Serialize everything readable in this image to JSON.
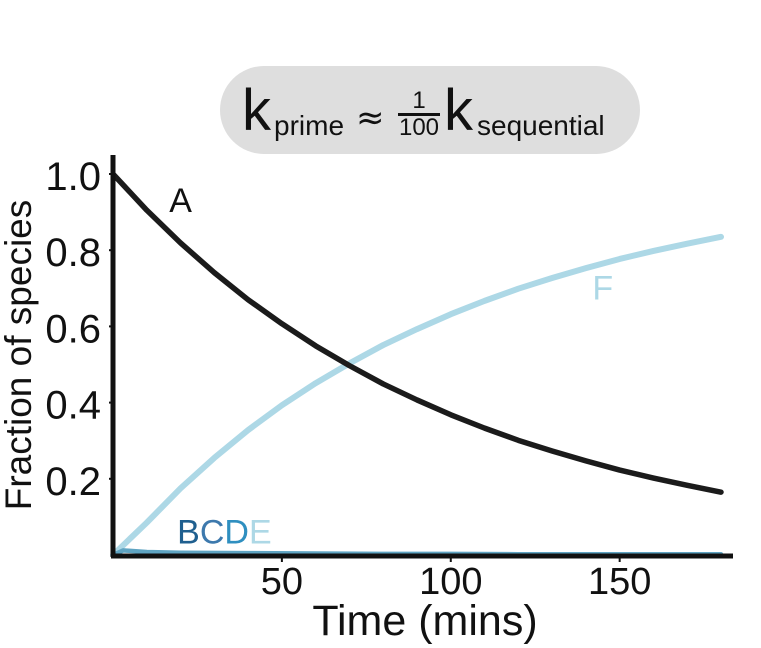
{
  "header": {
    "k_left": "k",
    "sub_left": "prime",
    "approx": "≈",
    "frac_num": "1",
    "frac_den": "100",
    "k_right": "k",
    "sub_right": "sequential"
  },
  "chart_data": {
    "type": "line",
    "xlabel": "Time (mins)",
    "ylabel": "Fraction of species",
    "xlim": [
      0,
      180
    ],
    "ylim": [
      0,
      1.0
    ],
    "x_ticks": [
      50,
      100,
      150
    ],
    "x_tick_labels": [
      "50",
      "100",
      "150"
    ],
    "y_ticks": [
      0.2,
      0.4,
      0.6,
      0.8,
      1.0
    ],
    "y_tick_labels": [
      "0.2",
      "0.4",
      "0.6",
      "0.8",
      "1.0"
    ],
    "grid": false,
    "series": [
      {
        "name": "A",
        "color": "#1b1b1b",
        "x": [
          0,
          10,
          20,
          30,
          40,
          50,
          60,
          70,
          80,
          90,
          100,
          110,
          120,
          130,
          140,
          150,
          160,
          170,
          180
        ],
        "y": [
          1.0,
          0.905,
          0.819,
          0.741,
          0.67,
          0.607,
          0.549,
          0.497,
          0.449,
          0.407,
          0.368,
          0.333,
          0.301,
          0.273,
          0.247,
          0.223,
          0.202,
          0.183,
          0.165
        ]
      },
      {
        "name": "F",
        "color": "#add8e6",
        "x": [
          0,
          10,
          20,
          30,
          40,
          50,
          60,
          70,
          80,
          90,
          100,
          110,
          120,
          130,
          140,
          150,
          160,
          170,
          180
        ],
        "y": [
          0.0,
          0.085,
          0.175,
          0.255,
          0.328,
          0.393,
          0.451,
          0.503,
          0.551,
          0.593,
          0.632,
          0.667,
          0.699,
          0.727,
          0.753,
          0.777,
          0.798,
          0.817,
          0.835
        ]
      },
      {
        "name": "BCDE",
        "color": "#5fa4c2",
        "x": [
          0,
          3,
          10,
          20,
          40,
          60,
          80,
          100,
          120,
          140,
          160,
          180
        ],
        "y": [
          0.0,
          0.012,
          0.008,
          0.006,
          0.005,
          0.004,
          0.003,
          0.003,
          0.002,
          0.002,
          0.002,
          0.002
        ]
      }
    ],
    "curve_labels": [
      {
        "text": "A",
        "color": "#111111",
        "x": 20,
        "y": 0.9
      },
      {
        "text": "F",
        "color": "#add8e6",
        "x": 145,
        "y": 0.67
      }
    ],
    "bcde_labels": [
      {
        "text": "B",
        "color": "#1f5f8f"
      },
      {
        "text": "C",
        "color": "#3d79ad"
      },
      {
        "text": "D",
        "color": "#2f8fc0"
      },
      {
        "text": "E",
        "color": "#add8e6"
      }
    ],
    "bcde_anchor": {
      "x": 19,
      "y": 0.03
    }
  }
}
